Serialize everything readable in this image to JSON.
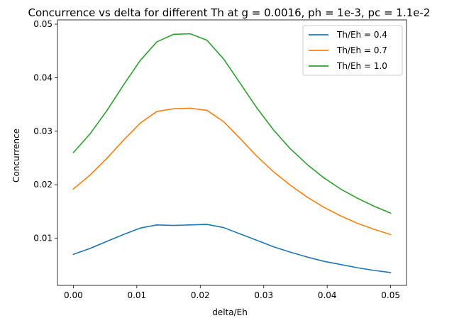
{
  "chart_data": {
    "type": "line",
    "title": "Concurrence vs delta for different Th at g = 0.0016, ph = 1e-3, pc = 1.1e-2",
    "xlabel": "delta/Eh",
    "ylabel": "Concurrence",
    "xlim": [
      -0.0025,
      0.0525
    ],
    "ylim": [
      0.0012,
      0.0508
    ],
    "xticks": [
      0.0,
      0.01,
      0.02,
      0.03,
      0.04,
      0.05
    ],
    "xtick_labels": [
      "0.00",
      "0.01",
      "0.02",
      "0.03",
      "0.04",
      "0.05"
    ],
    "yticks": [
      0.01,
      0.02,
      0.03,
      0.04,
      0.05
    ],
    "ytick_labels": [
      "0.01",
      "0.02",
      "0.03",
      "0.04",
      "0.05"
    ],
    "grid": false,
    "legend_position": "top-right",
    "x": [
      0.0,
      0.00263,
      0.00526,
      0.00789,
      0.01053,
      0.01316,
      0.01579,
      0.01842,
      0.02105,
      0.02368,
      0.02632,
      0.02895,
      0.03158,
      0.03421,
      0.03684,
      0.03947,
      0.04211,
      0.04474,
      0.04737,
      0.05
    ],
    "series": [
      {
        "name": "Th/Eh = 0.4",
        "color": "#1f77b4",
        "values": [
          0.007,
          0.0081,
          0.0094,
          0.0107,
          0.0119,
          0.0125,
          0.0124,
          0.0125,
          0.0126,
          0.012,
          0.0108,
          0.0096,
          0.0084,
          0.0074,
          0.0065,
          0.0057,
          0.0051,
          0.0045,
          0.004,
          0.0036
        ]
      },
      {
        "name": "Th/Eh = 0.7",
        "color": "#ff7f0e",
        "values": [
          0.0192,
          0.0218,
          0.0249,
          0.0283,
          0.0315,
          0.0337,
          0.0342,
          0.0343,
          0.0339,
          0.0318,
          0.0286,
          0.0253,
          0.0224,
          0.0199,
          0.0177,
          0.0158,
          0.0142,
          0.0128,
          0.0117,
          0.0107
        ]
      },
      {
        "name": "Th/Eh = 1.0",
        "color": "#2ca02c",
        "values": [
          0.026,
          0.0295,
          0.0338,
          0.0386,
          0.0432,
          0.0467,
          0.0481,
          0.0482,
          0.047,
          0.0435,
          0.0389,
          0.0343,
          0.0302,
          0.0267,
          0.0238,
          0.0213,
          0.0192,
          0.0175,
          0.016,
          0.0147
        ]
      }
    ]
  }
}
